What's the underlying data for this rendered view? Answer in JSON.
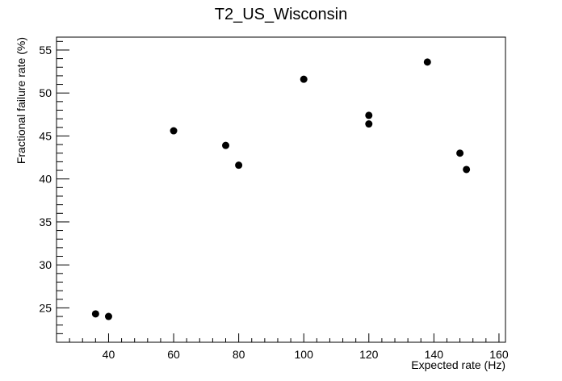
{
  "chart_data": {
    "type": "scatter",
    "title": "T2_US_Wisconsin",
    "xlabel": "Expected rate (Hz)",
    "ylabel": "Fractional failure rate (%)",
    "xlim": [
      24,
      162
    ],
    "ylim": [
      21,
      56.5
    ],
    "x_ticks": [
      40,
      60,
      80,
      100,
      120,
      140,
      160
    ],
    "y_ticks": [
      25,
      30,
      35,
      40,
      45,
      50,
      55
    ],
    "grid": false,
    "marker_color": "#000000",
    "points": [
      {
        "x": 36,
        "y": 24.3
      },
      {
        "x": 40,
        "y": 24.0
      },
      {
        "x": 60,
        "y": 45.6
      },
      {
        "x": 76,
        "y": 43.9
      },
      {
        "x": 80,
        "y": 41.6
      },
      {
        "x": 100,
        "y": 51.6
      },
      {
        "x": 120,
        "y": 47.4
      },
      {
        "x": 120,
        "y": 46.4
      },
      {
        "x": 138,
        "y": 53.6
      },
      {
        "x": 148,
        "y": 43.0
      },
      {
        "x": 150,
        "y": 41.1
      }
    ]
  }
}
